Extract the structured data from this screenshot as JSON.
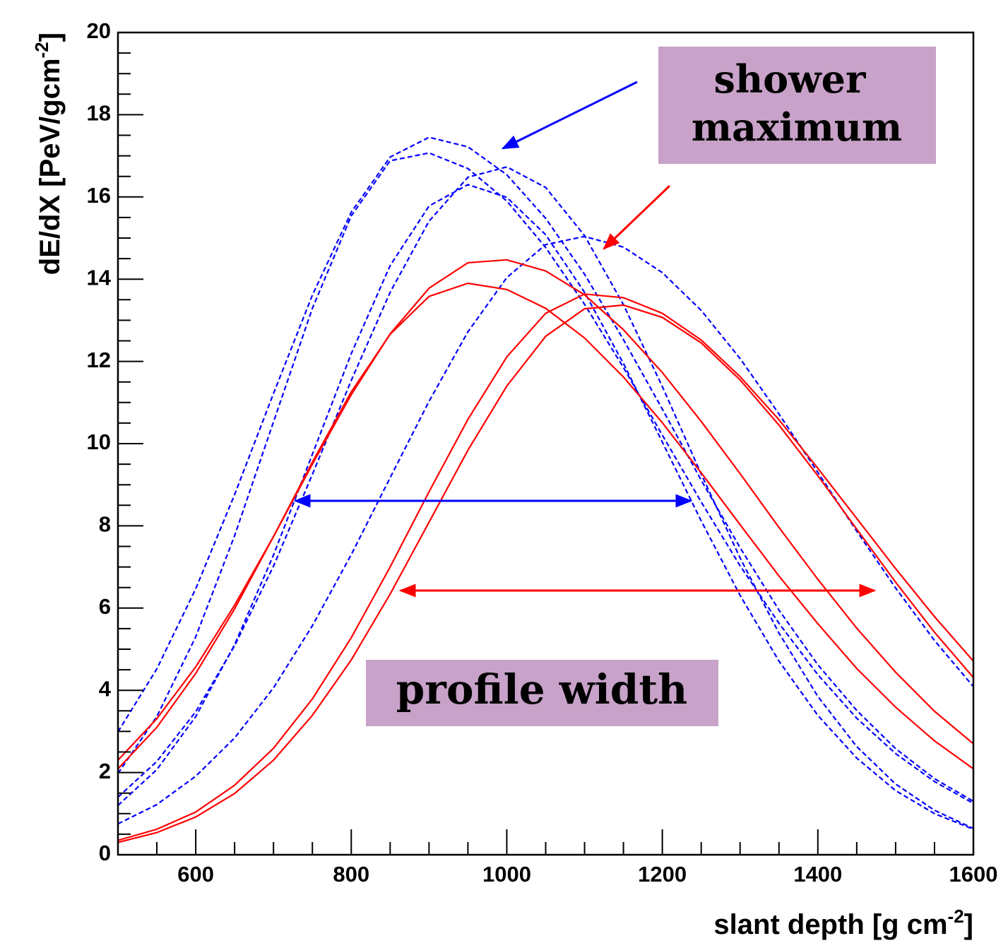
{
  "chart_data": {
    "type": "line",
    "xlabel": {
      "main": "slant depth [g cm",
      "sup": "-2",
      "end": "]"
    },
    "ylabel": {
      "main": "dE/dX [PeV/gcm",
      "sup": "-2",
      "end": "]"
    },
    "xlim": [
      500,
      1600
    ],
    "ylim": [
      0,
      20
    ],
    "xticks": [
      600,
      800,
      1000,
      1200,
      1400,
      1600
    ],
    "yticks": [
      0,
      2,
      4,
      6,
      8,
      10,
      12,
      14,
      16,
      18,
      20
    ],
    "xminorticks": [
      550,
      650,
      700,
      750,
      850,
      900,
      950,
      1050,
      1100,
      1150,
      1250,
      1300,
      1350,
      1450,
      1500,
      1550
    ],
    "yminorticks": [
      0.5,
      1,
      1.5,
      2.5,
      3,
      3.5,
      4.5,
      5,
      5.5,
      6.5,
      7,
      7.5,
      8.5,
      9,
      9.5,
      10.5,
      11,
      11.5,
      12.5,
      13,
      13.5,
      14.5,
      15,
      15.5,
      16.5,
      17,
      17.5,
      18.5,
      19,
      19.5
    ],
    "x": [
      500,
      550,
      600,
      650,
      700,
      750,
      800,
      850,
      900,
      950,
      1000,
      1050,
      1100,
      1150,
      1200,
      1250,
      1300,
      1350,
      1400,
      1450,
      1500,
      1550,
      1600
    ],
    "series": [
      {
        "color": "#0000ff",
        "dashed": true,
        "values": [
          2.99,
          4.52,
          6.47,
          8.76,
          11.22,
          13.61,
          15.63,
          16.97,
          17.45,
          17.22,
          16.54,
          15.48,
          14.12,
          12.53,
          10.84,
          9.11,
          7.47,
          5.95,
          4.62,
          3.51,
          2.58,
          1.85,
          1.3
        ]
      },
      {
        "color": "#0000ff",
        "dashed": true,
        "values": [
          1.98,
          3.36,
          5.3,
          7.76,
          10.53,
          13.29,
          15.54,
          16.88,
          17.07,
          16.69,
          15.9,
          14.77,
          13.39,
          11.85,
          10.21,
          8.58,
          7.03,
          5.63,
          4.38,
          3.32,
          2.46,
          1.78,
          1.25
        ]
      },
      {
        "color": "#0000ff",
        "dashed": true,
        "values": [
          1.4,
          2.27,
          3.48,
          5.08,
          7.02,
          9.25,
          11.54,
          13.68,
          15.41,
          16.48,
          16.73,
          16.23,
          15.06,
          13.38,
          11.39,
          9.26,
          7.22,
          5.39,
          3.85,
          2.63,
          1.72,
          1.08,
          0.64
        ]
      },
      {
        "color": "#0000ff",
        "dashed": true,
        "values": [
          1.2,
          2.07,
          3.36,
          5.11,
          7.29,
          9.74,
          12.19,
          14.33,
          15.78,
          16.3,
          15.99,
          15.08,
          13.68,
          11.95,
          10.04,
          8.12,
          6.31,
          4.71,
          3.39,
          2.35,
          1.56,
          1.0,
          0.62
        ]
      },
      {
        "color": "#0000ff",
        "dashed": true,
        "values": [
          0.75,
          1.22,
          1.91,
          2.84,
          4.06,
          5.57,
          7.3,
          9.17,
          11.03,
          12.72,
          14.04,
          14.84,
          15.04,
          14.78,
          14.16,
          13.24,
          12.07,
          10.72,
          9.3,
          7.87,
          6.49,
          5.21,
          4.09
        ]
      },
      {
        "color": "#ff0000",
        "dashed": false,
        "values": [
          2.3,
          3.31,
          4.57,
          6.07,
          7.74,
          9.5,
          11.19,
          12.67,
          13.78,
          14.4,
          14.47,
          14.2,
          13.62,
          12.77,
          11.73,
          10.54,
          9.27,
          7.96,
          6.7,
          5.51,
          4.44,
          3.49,
          2.7
        ]
      },
      {
        "color": "#ff0000",
        "dashed": false,
        "values": [
          2.09,
          3.1,
          4.41,
          5.98,
          7.74,
          9.55,
          11.26,
          12.66,
          13.58,
          13.9,
          13.75,
          13.29,
          12.57,
          11.62,
          10.51,
          9.29,
          8.03,
          6.78,
          5.62,
          4.53,
          3.59,
          2.77,
          2.09
        ]
      },
      {
        "color": "#ff0000",
        "dashed": false,
        "values": [
          0.35,
          0.62,
          1.04,
          1.69,
          2.59,
          3.79,
          5.28,
          7.0,
          8.83,
          10.59,
          12.11,
          13.17,
          13.64,
          13.55,
          13.17,
          12.52,
          11.63,
          10.58,
          9.4,
          8.18,
          6.96,
          5.79,
          4.71
        ]
      },
      {
        "color": "#ff0000",
        "dashed": false,
        "values": [
          0.3,
          0.54,
          0.92,
          1.49,
          2.3,
          3.39,
          4.74,
          6.34,
          8.09,
          9.84,
          11.4,
          12.61,
          13.28,
          13.37,
          13.07,
          12.45,
          11.55,
          10.45,
          9.22,
          7.92,
          6.63,
          5.41,
          4.31
        ]
      }
    ],
    "annotations": {
      "shower_maximum": [
        "shower",
        "maximum"
      ],
      "profile_width": "profile width"
    }
  }
}
